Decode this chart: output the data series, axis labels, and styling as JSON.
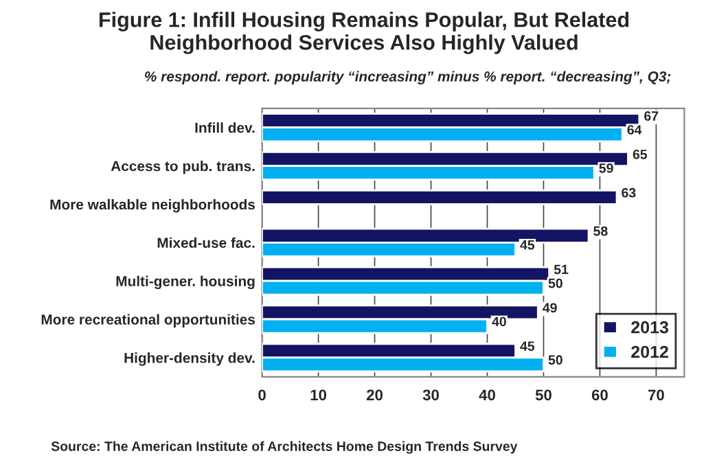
{
  "chart_data": {
    "type": "bar",
    "orientation": "horizontal",
    "title": "Figure 1: Infill Housing Remains Popular, But Related\nNeighborhood Services Also Highly Valued",
    "subtitle": "% respond. report. popularity “increasing” minus % report. “decreasing”, Q3;",
    "categories": [
      "Infill dev.",
      "Access to pub. trans.",
      "More walkable neighborhoods",
      "Mixed-use fac.",
      "Multi-gener. housing",
      "More recreational opportunities",
      "Higher-density dev."
    ],
    "series": [
      {
        "name": "2013",
        "color": "#141464",
        "values": [
          67,
          65,
          63,
          58,
          51,
          49,
          45
        ]
      },
      {
        "name": "2012",
        "color": "#00b0f0",
        "values": [
          64,
          59,
          null,
          45,
          50,
          40,
          50
        ]
      }
    ],
    "xlim": [
      0,
      75
    ],
    "xticks": [
      0,
      10,
      20,
      30,
      40,
      50,
      60,
      70
    ],
    "grid": "x",
    "legend": "bottom right",
    "data_labels": true,
    "annotations": [
      "Source: The American Institute of Architects Home Design Trends Survey"
    ]
  }
}
